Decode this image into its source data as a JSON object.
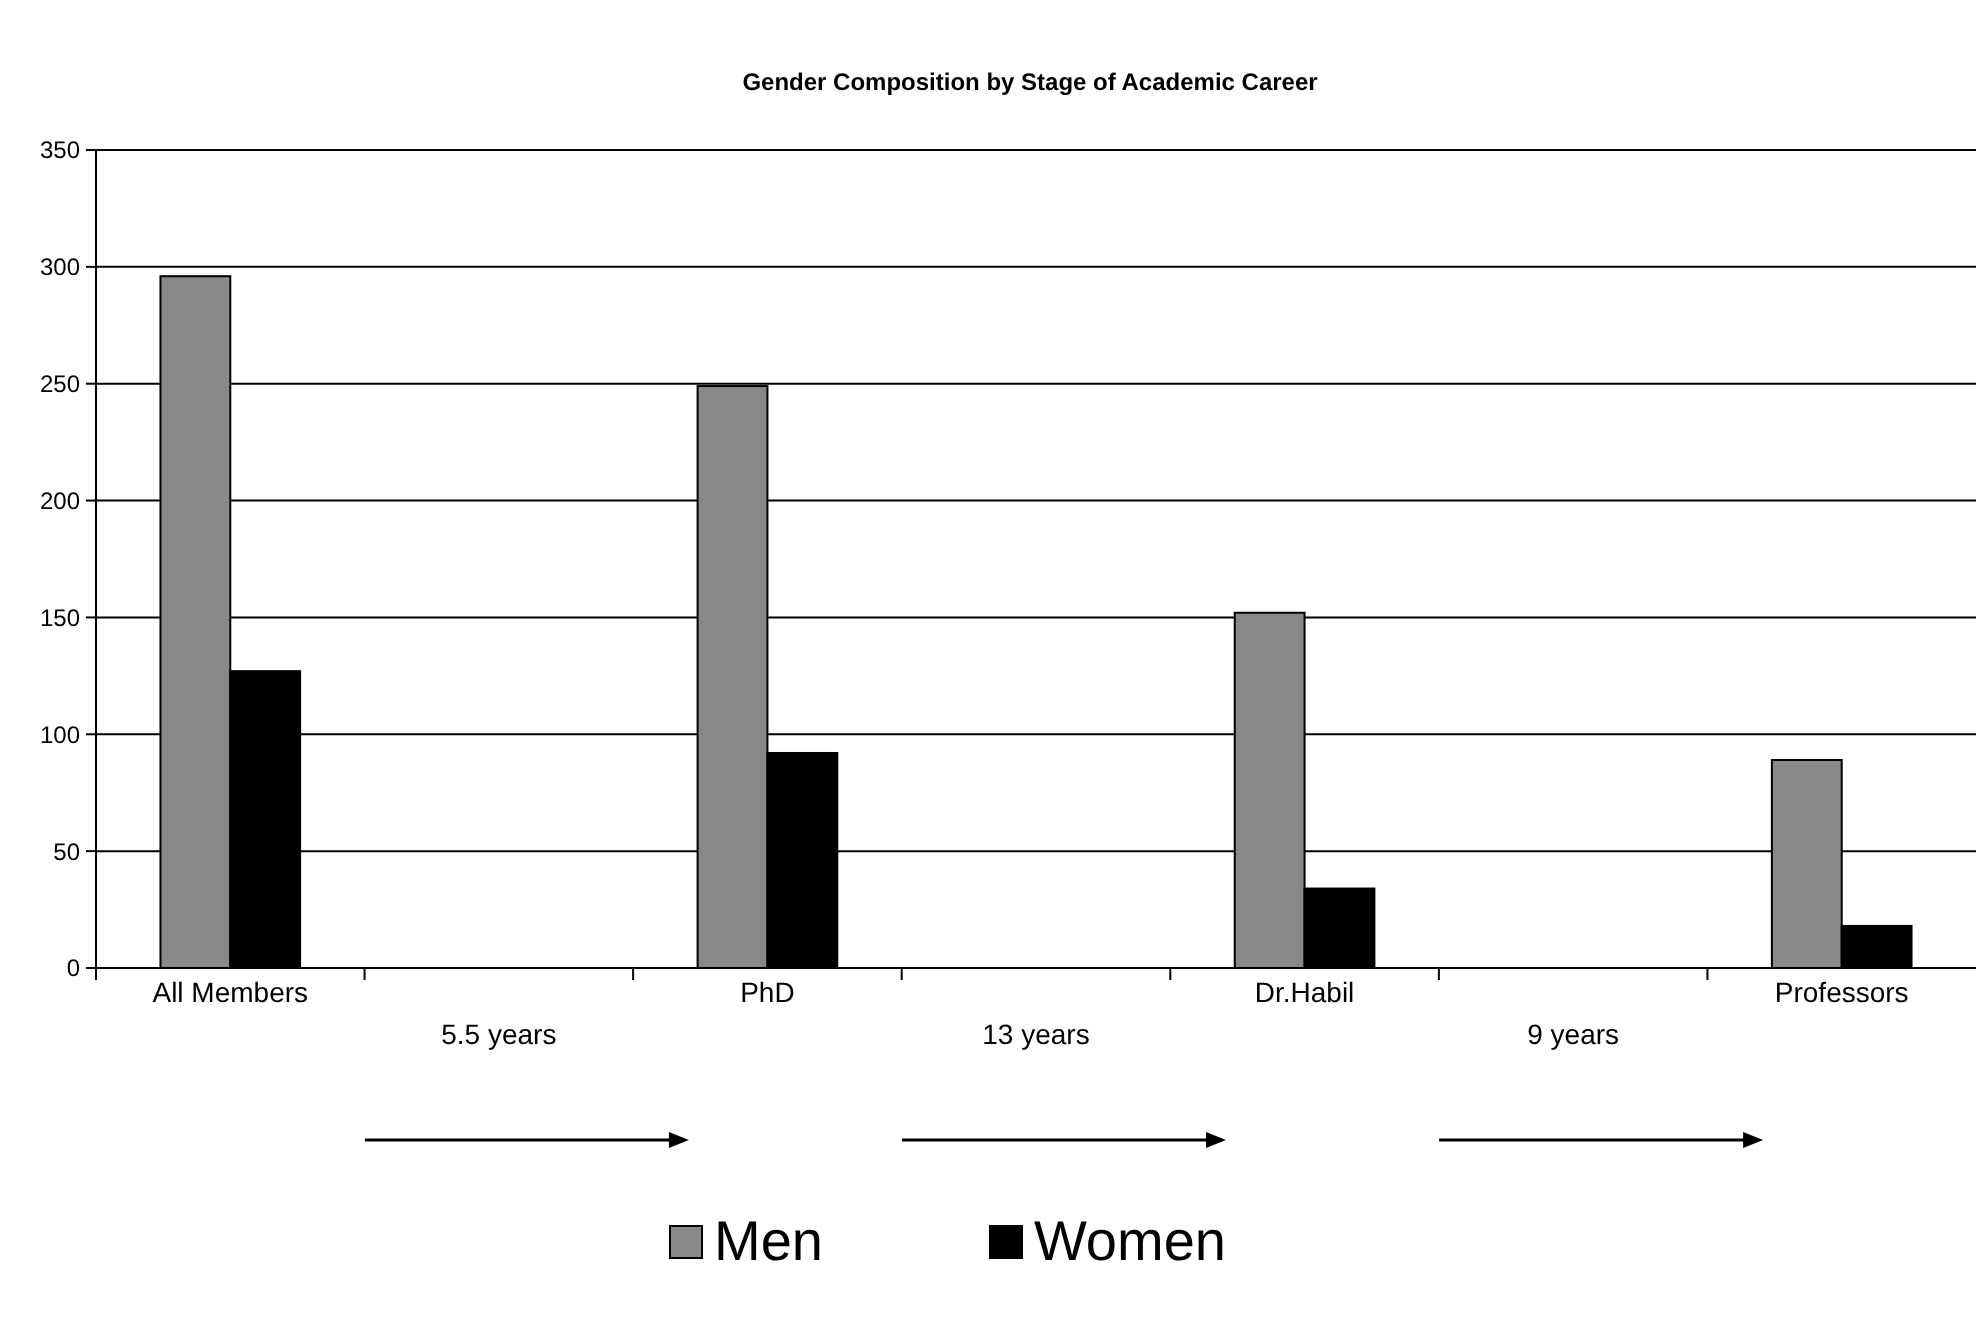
{
  "chart_data": {
    "type": "bar",
    "title": "Gender Composition by Stage of Academic Career",
    "categories": [
      "All Members",
      "5.5 years",
      "PhD",
      "13 years",
      "Dr.Habil",
      "9 years",
      "Professors"
    ],
    "series": [
      {
        "name": "Men",
        "color": "#888888",
        "values": [
          296,
          null,
          249,
          null,
          152,
          null,
          89
        ]
      },
      {
        "name": "Women",
        "color": "#000000",
        "values": [
          127,
          null,
          92,
          null,
          34,
          null,
          18
        ]
      }
    ],
    "ylim": [
      0,
      350
    ],
    "yticks": [
      0,
      50,
      100,
      150,
      200,
      250,
      300,
      350
    ],
    "grid": "y",
    "legend": "bottom"
  }
}
